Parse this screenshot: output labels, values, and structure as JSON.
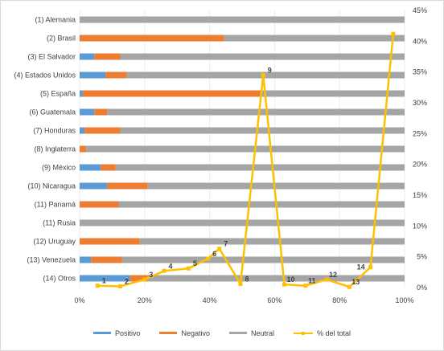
{
  "chart_data": {
    "type": "bar",
    "stacked": "100%",
    "orientation": "horizontal",
    "categories": [
      "(1) Alemania",
      "(2) Brasil",
      "(3) El Salvador",
      "(4) Estados Unidos",
      "(5) España",
      "(6) Guatemala",
      "(7) Honduras",
      "(8) Inglaterra",
      "(9) México",
      "(10) Nicaragua",
      "(11) Panamá",
      "(11) Rusia",
      "(12) Uruguay",
      "(13) Venezuela",
      "(14) Otros"
    ],
    "series": [
      {
        "name": "Positivo",
        "color": "#5b9bd5",
        "values": [
          0,
          0,
          4.5,
          8,
          1,
          4.5,
          1.5,
          0,
          6.5,
          8.5,
          0,
          0,
          0,
          3.5,
          15.5
        ]
      },
      {
        "name": "Negativo",
        "color": "#ed7d31",
        "values": [
          0,
          44.5,
          8,
          6.5,
          55,
          4,
          11,
          2,
          4.5,
          12.5,
          12,
          0,
          18.5,
          9.5,
          5.5
        ]
      },
      {
        "name": "Neutral",
        "color": "#a5a5a5",
        "values": [
          100,
          55.5,
          87.5,
          85.5,
          44,
          91.5,
          87.5,
          98,
          89,
          79,
          88,
          100,
          81.5,
          87,
          79
        ]
      }
    ],
    "line_series": {
      "name": "% del total",
      "color": "#ffc000",
      "axis": "secondary",
      "points": [
        {
          "label": "1",
          "x": 5.5,
          "y": 0.3
        },
        {
          "label": "2",
          "x": 12.5,
          "y": 0.2
        },
        {
          "label": "3",
          "x": 20,
          "y": 1.3
        },
        {
          "label": "4",
          "x": 26,
          "y": 2.7
        },
        {
          "label": "5",
          "x": 33.5,
          "y": 3.1
        },
        {
          "label": "6",
          "x": 39.5,
          "y": 4.7
        },
        {
          "label": "7",
          "x": 43,
          "y": 6.3
        },
        {
          "label": "8",
          "x": 49.5,
          "y": 0.6
        },
        {
          "label": "9",
          "x": 56.5,
          "y": 34.5
        },
        {
          "label": "10",
          "x": 63,
          "y": 0.5
        },
        {
          "label": "11",
          "x": 69.5,
          "y": 0.3
        },
        {
          "label": "12",
          "x": 76,
          "y": 1.3
        },
        {
          "label": "13",
          "x": 83,
          "y": 0.1
        },
        {
          "label": "14",
          "x": 89.5,
          "y": 3.3
        },
        {
          "label": "",
          "x": 96.5,
          "y": 41.2
        }
      ]
    },
    "x_axis": {
      "min": 0,
      "max": 100,
      "ticks": [
        "0%",
        "20%",
        "40%",
        "60%",
        "80%",
        "100%"
      ]
    },
    "y2_axis": {
      "min": 0,
      "max": 45,
      "ticks": [
        "0%",
        "5%",
        "10%",
        "15%",
        "20%",
        "25%",
        "30%",
        "35%",
        "40%",
        "45%"
      ]
    },
    "legend": {
      "position": "bottom"
    }
  }
}
